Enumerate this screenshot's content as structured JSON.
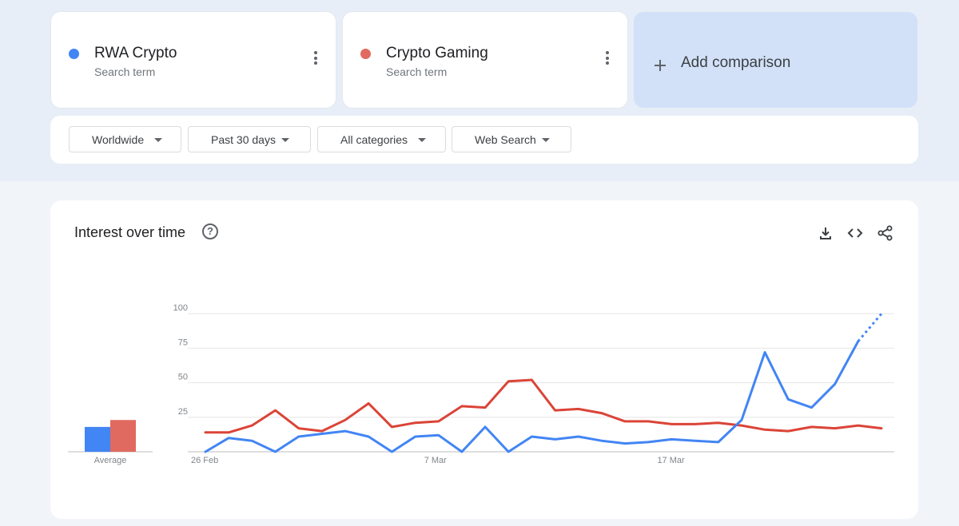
{
  "terms": [
    {
      "name": "RWA Crypto",
      "subtitle": "Search term",
      "color": "#4285f4",
      "menu_icon": "more-vert-icon"
    },
    {
      "name": "Crypto Gaming",
      "subtitle": "Search term",
      "color": "#e06a5f",
      "menu_icon": "more-vert-icon"
    }
  ],
  "add_comparison": {
    "label": "Add comparison",
    "icon": "plus-icon"
  },
  "filters": [
    {
      "label": "Worldwide"
    },
    {
      "label": "Past 30 days"
    },
    {
      "label": "All categories"
    },
    {
      "label": "Web Search"
    }
  ],
  "chart_section": {
    "title": "Interest over time",
    "icons": [
      "help-icon",
      "download-icon",
      "embed-code-icon",
      "share-icon"
    ]
  },
  "chart_data": {
    "type": "line",
    "title": "Interest over time",
    "ylim": [
      0,
      100
    ],
    "y_ticks": [
      25,
      50,
      75,
      100
    ],
    "x_tick_labels": [
      {
        "label": "26 Feb",
        "index": 0
      },
      {
        "label": "7 Mar",
        "index": 10
      },
      {
        "label": "17 Mar",
        "index": 20
      }
    ],
    "grid": true,
    "series": [
      {
        "name": "RWA Crypto",
        "color": "#4285f4",
        "values": [
          0,
          10,
          8,
          0,
          11,
          13,
          15,
          11,
          0,
          11,
          12,
          0,
          18,
          0,
          11,
          9,
          11,
          8,
          6,
          7,
          9,
          8,
          7,
          23,
          72,
          38,
          32,
          49,
          80,
          100
        ],
        "partial_from_index": 28
      },
      {
        "name": "Crypto Gaming",
        "color": "#db4437",
        "values": [
          14,
          14,
          19,
          30,
          17,
          15,
          23,
          35,
          18,
          21,
          22,
          33,
          32,
          51,
          52,
          30,
          31,
          28,
          22,
          22,
          20,
          20,
          21,
          19,
          16,
          15,
          18,
          17,
          19,
          17
        ]
      }
    ],
    "average": {
      "label": "Average",
      "values": [
        {
          "name": "RWA Crypto",
          "value": 18,
          "color": "#4285f4"
        },
        {
          "name": "Crypto Gaming",
          "value": 23,
          "color": "#e06a5f"
        }
      ]
    }
  }
}
